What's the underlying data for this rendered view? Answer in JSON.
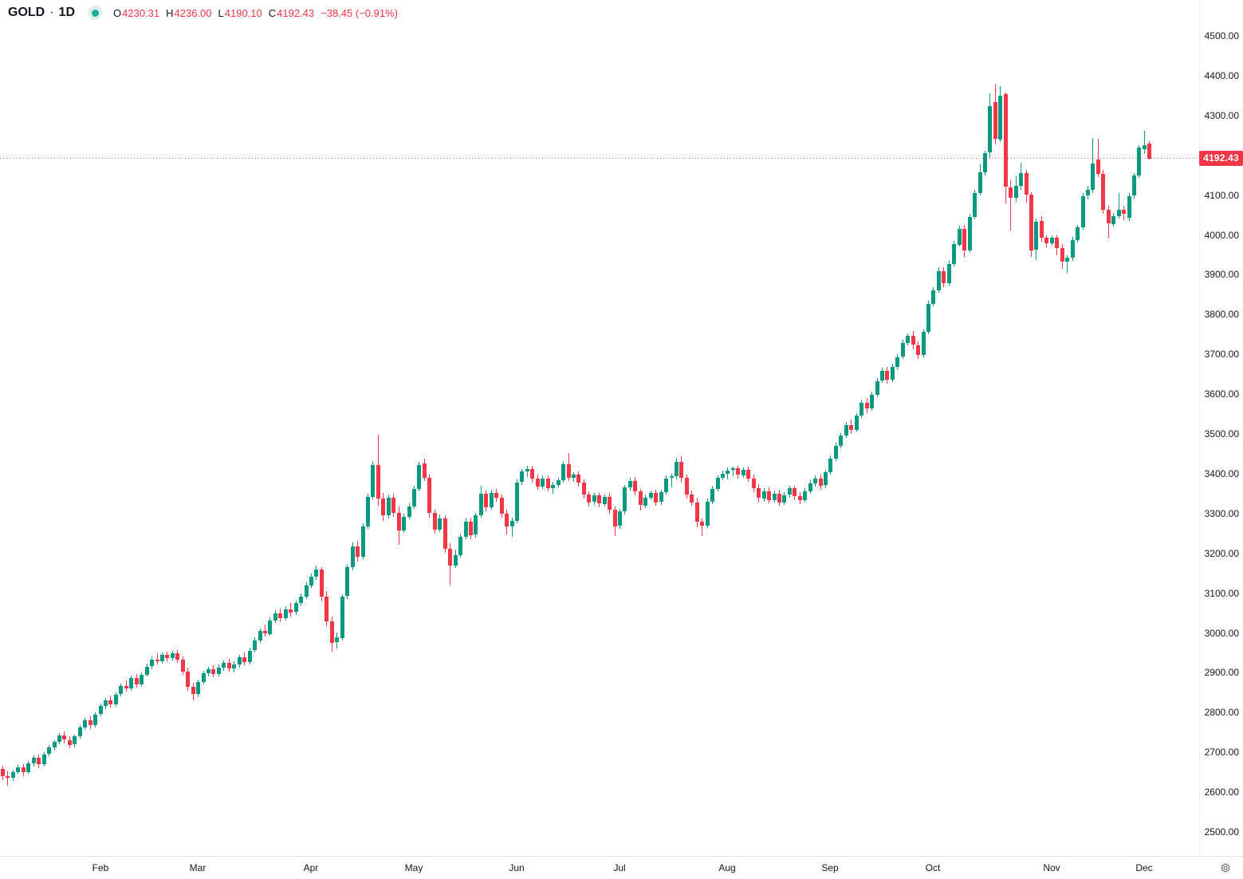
{
  "header": {
    "symbol": "GOLD",
    "separator": "·",
    "timeframe": "1D",
    "ohlc": {
      "o_label": "O",
      "o": "4230.31",
      "h_label": "H",
      "h": "4236.00",
      "l_label": "L",
      "l": "4190.10",
      "c_label": "C",
      "c": "4192.43",
      "change": "−38.45 (−0.91%)"
    }
  },
  "colors": {
    "up": "#089981",
    "down": "#F23645",
    "text": "#131722",
    "axis_border": "#e0e3eb",
    "price_line": "#F23645",
    "label_bg": "#F23645",
    "label_text": "#ffffff",
    "status_dot": "#22ab94"
  },
  "chart_data": {
    "type": "candlestick",
    "symbol": "GOLD",
    "interval": "1D",
    "last_ohlc": {
      "open": 4230.31,
      "high": 4236.0,
      "low": 4190.1,
      "close": 4192.43,
      "change": -38.45,
      "change_pct": -0.91
    },
    "last_price": {
      "value": 4192.43,
      "label": "4192.43"
    },
    "price_axis": {
      "min": 2500,
      "max": 4500,
      "step": 100
    },
    "price_ticks": [
      "4500.00",
      "4400.00",
      "4300.00",
      "4200.00",
      "4100.00",
      "4000.00",
      "3900.00",
      "3800.00",
      "3700.00",
      "3600.00",
      "3500.00",
      "3400.00",
      "3300.00",
      "3200.00",
      "3100.00",
      "3000.00",
      "2900.00",
      "2800.00",
      "2700.00",
      "2600.00",
      "2500.00"
    ],
    "time_ticks": [
      {
        "label": "Feb",
        "index": 19
      },
      {
        "label": "Mar",
        "index": 38
      },
      {
        "label": "Apr",
        "index": 60
      },
      {
        "label": "May",
        "index": 80
      },
      {
        "label": "Jun",
        "index": 100
      },
      {
        "label": "Jul",
        "index": 120
      },
      {
        "label": "Aug",
        "index": 141
      },
      {
        "label": "Sep",
        "index": 161
      },
      {
        "label": "Oct",
        "index": 181
      },
      {
        "label": "Nov",
        "index": 204
      },
      {
        "label": "Dec",
        "index": 222
      }
    ],
    "candles": [
      [
        2658,
        2666,
        2630,
        2640
      ],
      [
        2640,
        2652,
        2616,
        2635
      ],
      [
        2635,
        2656,
        2628,
        2650
      ],
      [
        2650,
        2668,
        2644,
        2662
      ],
      [
        2662,
        2670,
        2640,
        2650
      ],
      [
        2650,
        2678,
        2646,
        2672
      ],
      [
        2672,
        2692,
        2665,
        2686
      ],
      [
        2686,
        2695,
        2660,
        2670
      ],
      [
        2670,
        2700,
        2664,
        2695
      ],
      [
        2695,
        2718,
        2690,
        2712
      ],
      [
        2712,
        2730,
        2705,
        2726
      ],
      [
        2726,
        2748,
        2720,
        2742
      ],
      [
        2742,
        2752,
        2722,
        2731
      ],
      [
        2731,
        2740,
        2710,
        2719
      ],
      [
        2719,
        2745,
        2713,
        2740
      ],
      [
        2740,
        2768,
        2735,
        2762
      ],
      [
        2762,
        2786,
        2756,
        2780
      ],
      [
        2780,
        2790,
        2758,
        2768
      ],
      [
        2768,
        2800,
        2762,
        2795
      ],
      [
        2795,
        2822,
        2790,
        2816
      ],
      [
        2816,
        2836,
        2808,
        2830
      ],
      [
        2830,
        2842,
        2812,
        2820
      ],
      [
        2820,
        2850,
        2815,
        2845
      ],
      [
        2845,
        2872,
        2840,
        2866
      ],
      [
        2866,
        2880,
        2852,
        2860
      ],
      [
        2860,
        2892,
        2855,
        2886
      ],
      [
        2886,
        2896,
        2862,
        2870
      ],
      [
        2870,
        2900,
        2864,
        2895
      ],
      [
        2895,
        2922,
        2890,
        2915
      ],
      [
        2915,
        2940,
        2908,
        2932
      ],
      [
        2932,
        2948,
        2920,
        2928
      ],
      [
        2928,
        2950,
        2922,
        2944
      ],
      [
        2944,
        2952,
        2928,
        2935
      ],
      [
        2935,
        2955,
        2930,
        2948
      ],
      [
        2948,
        2956,
        2925,
        2932
      ],
      [
        2932,
        2940,
        2895,
        2902
      ],
      [
        2902,
        2912,
        2855,
        2864
      ],
      [
        2864,
        2875,
        2830,
        2845
      ],
      [
        2845,
        2882,
        2838,
        2876
      ],
      [
        2876,
        2905,
        2870,
        2898
      ],
      [
        2898,
        2915,
        2890,
        2908
      ],
      [
        2908,
        2918,
        2888,
        2896
      ],
      [
        2896,
        2920,
        2890,
        2912
      ],
      [
        2912,
        2930,
        2905,
        2924
      ],
      [
        2924,
        2934,
        2902,
        2910
      ],
      [
        2910,
        2928,
        2900,
        2920
      ],
      [
        2920,
        2945,
        2912,
        2938
      ],
      [
        2938,
        2950,
        2918,
        2926
      ],
      [
        2926,
        2962,
        2920,
        2955
      ],
      [
        2955,
        2988,
        2950,
        2980
      ],
      [
        2980,
        3012,
        2975,
        3005
      ],
      [
        3005,
        3022,
        2990,
        2998
      ],
      [
        2998,
        3040,
        2992,
        3032
      ],
      [
        3032,
        3058,
        3026,
        3050
      ],
      [
        3050,
        3062,
        3028,
        3038
      ],
      [
        3038,
        3068,
        3032,
        3060
      ],
      [
        3060,
        3075,
        3042,
        3052
      ],
      [
        3052,
        3082,
        3046,
        3075
      ],
      [
        3075,
        3100,
        3068,
        3092
      ],
      [
        3092,
        3128,
        3086,
        3120
      ],
      [
        3120,
        3150,
        3114,
        3142
      ],
      [
        3142,
        3170,
        3134,
        3160
      ],
      [
        3160,
        3165,
        3080,
        3092
      ],
      [
        3092,
        3105,
        3018,
        3030
      ],
      [
        3030,
        3042,
        2952,
        2975
      ],
      [
        2975,
        3002,
        2960,
        2988
      ],
      [
        2988,
        3098,
        2980,
        3092
      ],
      [
        3092,
        3172,
        3086,
        3165
      ],
      [
        3165,
        3228,
        3158,
        3218
      ],
      [
        3218,
        3232,
        3180,
        3192
      ],
      [
        3192,
        3275,
        3186,
        3268
      ],
      [
        3268,
        3350,
        3262,
        3342
      ],
      [
        3342,
        3430,
        3336,
        3422
      ],
      [
        3422,
        3498,
        3320,
        3338
      ],
      [
        3338,
        3352,
        3282,
        3295
      ],
      [
        3295,
        3348,
        3288,
        3340
      ],
      [
        3340,
        3350,
        3292,
        3302
      ],
      [
        3302,
        3318,
        3222,
        3258
      ],
      [
        3258,
        3300,
        3252,
        3292
      ],
      [
        3292,
        3325,
        3286,
        3318
      ],
      [
        3318,
        3370,
        3312,
        3362
      ],
      [
        3362,
        3430,
        3356,
        3422
      ],
      [
        3426,
        3438,
        3382,
        3390
      ],
      [
        3390,
        3398,
        3290,
        3302
      ],
      [
        3302,
        3310,
        3250,
        3260
      ],
      [
        3260,
        3298,
        3254,
        3288
      ],
      [
        3288,
        3295,
        3202,
        3212
      ],
      [
        3212,
        3225,
        3120,
        3170
      ],
      [
        3170,
        3210,
        3163,
        3196
      ],
      [
        3196,
        3250,
        3190,
        3242
      ],
      [
        3242,
        3288,
        3236,
        3280
      ],
      [
        3280,
        3290,
        3236,
        3246
      ],
      [
        3246,
        3302,
        3240,
        3295
      ],
      [
        3295,
        3370,
        3290,
        3350
      ],
      [
        3350,
        3358,
        3306,
        3316
      ],
      [
        3316,
        3360,
        3310,
        3352
      ],
      [
        3352,
        3362,
        3330,
        3340
      ],
      [
        3340,
        3348,
        3290,
        3300
      ],
      [
        3300,
        3310,
        3247,
        3268
      ],
      [
        3268,
        3290,
        3242,
        3282
      ],
      [
        3282,
        3385,
        3276,
        3378
      ],
      [
        3378,
        3412,
        3372,
        3405
      ],
      [
        3405,
        3420,
        3392,
        3412
      ],
      [
        3412,
        3420,
        3378,
        3388
      ],
      [
        3388,
        3398,
        3360,
        3368
      ],
      [
        3368,
        3395,
        3362,
        3388
      ],
      [
        3388,
        3396,
        3356,
        3364
      ],
      [
        3364,
        3380,
        3350,
        3372
      ],
      [
        3372,
        3390,
        3366,
        3384
      ],
      [
        3384,
        3430,
        3378,
        3424
      ],
      [
        3424,
        3452,
        3382,
        3390
      ],
      [
        3390,
        3404,
        3380,
        3398
      ],
      [
        3398,
        3406,
        3368,
        3378
      ],
      [
        3378,
        3386,
        3338,
        3348
      ],
      [
        3348,
        3356,
        3318,
        3328
      ],
      [
        3328,
        3352,
        3322,
        3345
      ],
      [
        3345,
        3352,
        3316,
        3324
      ],
      [
        3324,
        3348,
        3318,
        3342
      ],
      [
        3342,
        3352,
        3300,
        3310
      ],
      [
        3310,
        3318,
        3244,
        3268
      ],
      [
        3268,
        3312,
        3262,
        3305
      ],
      [
        3305,
        3372,
        3298,
        3365
      ],
      [
        3365,
        3390,
        3358,
        3382
      ],
      [
        3382,
        3392,
        3345,
        3355
      ],
      [
        3355,
        3362,
        3308,
        3320
      ],
      [
        3320,
        3348,
        3314,
        3340
      ],
      [
        3340,
        3358,
        3334,
        3352
      ],
      [
        3352,
        3360,
        3320,
        3328
      ],
      [
        3328,
        3360,
        3322,
        3353
      ],
      [
        3353,
        3396,
        3348,
        3388
      ],
      [
        3388,
        3400,
        3366,
        3393
      ],
      [
        3393,
        3440,
        3386,
        3430
      ],
      [
        3430,
        3443,
        3378,
        3390
      ],
      [
        3390,
        3398,
        3338,
        3348
      ],
      [
        3348,
        3358,
        3320,
        3328
      ],
      [
        3328,
        3340,
        3266,
        3280
      ],
      [
        3280,
        3288,
        3243,
        3270
      ],
      [
        3270,
        3338,
        3264,
        3330
      ],
      [
        3330,
        3370,
        3324,
        3362
      ],
      [
        3362,
        3396,
        3356,
        3390
      ],
      [
        3390,
        3408,
        3384,
        3400
      ],
      [
        3400,
        3416,
        3386,
        3408
      ],
      [
        3408,
        3418,
        3393,
        3413
      ],
      [
        3413,
        3420,
        3388,
        3396
      ],
      [
        3396,
        3416,
        3390,
        3410
      ],
      [
        3410,
        3418,
        3380,
        3388
      ],
      [
        3388,
        3398,
        3354,
        3363
      ],
      [
        3363,
        3373,
        3328,
        3338
      ],
      [
        3338,
        3363,
        3330,
        3356
      ],
      [
        3356,
        3366,
        3326,
        3334
      ],
      [
        3334,
        3358,
        3328,
        3350
      ],
      [
        3350,
        3360,
        3320,
        3328
      ],
      [
        3328,
        3353,
        3322,
        3346
      ],
      [
        3346,
        3370,
        3340,
        3363
      ],
      [
        3363,
        3370,
        3334,
        3343
      ],
      [
        3343,
        3353,
        3324,
        3333
      ],
      [
        3333,
        3363,
        3328,
        3356
      ],
      [
        3356,
        3383,
        3350,
        3376
      ],
      [
        3376,
        3396,
        3368,
        3388
      ],
      [
        3388,
        3398,
        3360,
        3370
      ],
      [
        3370,
        3410,
        3364,
        3403
      ],
      [
        3403,
        3446,
        3398,
        3438
      ],
      [
        3438,
        3478,
        3432,
        3470
      ],
      [
        3470,
        3503,
        3464,
        3496
      ],
      [
        3496,
        3530,
        3490,
        3523
      ],
      [
        3523,
        3536,
        3500,
        3510
      ],
      [
        3510,
        3553,
        3506,
        3546
      ],
      [
        3546,
        3586,
        3540,
        3578
      ],
      [
        3578,
        3590,
        3553,
        3563
      ],
      [
        3563,
        3606,
        3558,
        3598
      ],
      [
        3598,
        3640,
        3593,
        3633
      ],
      [
        3633,
        3666,
        3628,
        3658
      ],
      [
        3658,
        3668,
        3626,
        3636
      ],
      [
        3636,
        3676,
        3630,
        3668
      ],
      [
        3668,
        3700,
        3663,
        3693
      ],
      [
        3693,
        3736,
        3688,
        3728
      ],
      [
        3728,
        3753,
        3722,
        3746
      ],
      [
        3746,
        3758,
        3713,
        3723
      ],
      [
        3723,
        3733,
        3688,
        3698
      ],
      [
        3698,
        3763,
        3693,
        3756
      ],
      [
        3756,
        3834,
        3750,
        3826
      ],
      [
        3826,
        3868,
        3820,
        3860
      ],
      [
        3860,
        3918,
        3854,
        3908
      ],
      [
        3908,
        3918,
        3868,
        3878
      ],
      [
        3878,
        3934,
        3872,
        3926
      ],
      [
        3926,
        3984,
        3920,
        3976
      ],
      [
        3976,
        4024,
        3970,
        4016
      ],
      [
        4016,
        4026,
        3942,
        3962
      ],
      [
        3962,
        4054,
        3956,
        4046
      ],
      [
        4046,
        4114,
        4040,
        4106
      ],
      [
        4106,
        4178,
        4100,
        4158
      ],
      [
        4158,
        4212,
        4150,
        4206
      ],
      [
        4206,
        4356,
        4196,
        4323
      ],
      [
        4333,
        4380,
        4228,
        4240
      ],
      [
        4240,
        4373,
        4234,
        4350
      ],
      [
        4353,
        4358,
        4080,
        4120
      ],
      [
        4120,
        4138,
        4012,
        4093
      ],
      [
        4093,
        4148,
        4084,
        4123
      ],
      [
        4123,
        4182,
        4114,
        4156
      ],
      [
        4156,
        4164,
        4082,
        4102
      ],
      [
        4102,
        4108,
        3944,
        3962
      ],
      [
        3962,
        4042,
        3936,
        4033
      ],
      [
        4036,
        4048,
        3982,
        3993
      ],
      [
        3993,
        4000,
        3968,
        3978
      ],
      [
        3978,
        3998,
        3972,
        3992
      ],
      [
        3992,
        4000,
        3948,
        3966
      ],
      [
        3966,
        3976,
        3914,
        3931
      ],
      [
        3931,
        3948,
        3904,
        3942
      ],
      [
        3942,
        3994,
        3934,
        3986
      ],
      [
        3986,
        4026,
        3980,
        4019
      ],
      [
        4019,
        4106,
        4014,
        4098
      ],
      [
        4098,
        4124,
        4090,
        4113
      ],
      [
        4113,
        4243,
        4106,
        4180
      ],
      [
        4190,
        4241,
        4146,
        4153
      ],
      [
        4153,
        4163,
        4054,
        4063
      ],
      [
        4063,
        4073,
        3990,
        4028
      ],
      [
        4028,
        4056,
        4021,
        4048
      ],
      [
        4048,
        4106,
        4041,
        4064
      ],
      [
        4064,
        4074,
        4038,
        4054
      ],
      [
        4044,
        4106,
        4036,
        4098
      ],
      [
        4098,
        4156,
        4092,
        4149
      ],
      [
        4149,
        4226,
        4143,
        4219
      ],
      [
        4216,
        4261,
        4204,
        4226
      ],
      [
        4230.31,
        4236.0,
        4190.1,
        4192.43
      ]
    ]
  }
}
